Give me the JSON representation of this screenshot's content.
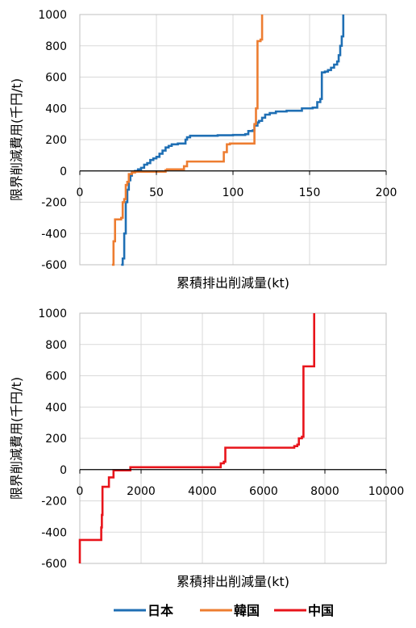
{
  "chart_data": [
    {
      "type": "line",
      "step": true,
      "xlabel": "累積排出削減量(kt)",
      "ylabel": "限界削減費用(千円/t)",
      "xlim": [
        0,
        200
      ],
      "ylim": [
        -600,
        1000
      ],
      "xticks": [
        0,
        50,
        100,
        150,
        200
      ],
      "yticks": [
        -600,
        -400,
        -200,
        0,
        200,
        400,
        600,
        800,
        1000
      ],
      "grid": true,
      "series": [
        {
          "name": "日本",
          "color": "#1f6fb4",
          "points": [
            [
              27,
              -600
            ],
            [
              28,
              -560
            ],
            [
              29,
              -400
            ],
            [
              30,
              -200
            ],
            [
              31,
              -120
            ],
            [
              32,
              -60
            ],
            [
              33,
              -30
            ],
            [
              34,
              -10
            ],
            [
              36,
              0
            ],
            [
              38,
              10
            ],
            [
              40,
              20
            ],
            [
              42,
              40
            ],
            [
              44,
              50
            ],
            [
              46,
              70
            ],
            [
              48,
              80
            ],
            [
              50,
              90
            ],
            [
              52,
              110
            ],
            [
              54,
              130
            ],
            [
              56,
              150
            ],
            [
              58,
              160
            ],
            [
              60,
              170
            ],
            [
              64,
              175
            ],
            [
              68,
              175
            ],
            [
              69,
              200
            ],
            [
              70,
              215
            ],
            [
              72,
              225
            ],
            [
              80,
              225
            ],
            [
              90,
              228
            ],
            [
              100,
              230
            ],
            [
              108,
              235
            ],
            [
              110,
              255
            ],
            [
              113,
              260
            ],
            [
              114,
              290
            ],
            [
              116,
              310
            ],
            [
              117,
              320
            ],
            [
              119,
              340
            ],
            [
              121,
              360
            ],
            [
              124,
              370
            ],
            [
              128,
              380
            ],
            [
              135,
              385
            ],
            [
              145,
              400
            ],
            [
              152,
              405
            ],
            [
              155,
              440
            ],
            [
              157,
              460
            ],
            [
              158,
              630
            ],
            [
              160,
              635
            ],
            [
              162,
              645
            ],
            [
              164,
              660
            ],
            [
              166,
              680
            ],
            [
              168,
              700
            ],
            [
              169,
              740
            ],
            [
              170,
              800
            ],
            [
              171,
              860
            ],
            [
              172,
              1000
            ]
          ]
        },
        {
          "name": "韓国",
          "color": "#ed7d31",
          "points": [
            [
              21,
              -600
            ],
            [
              22,
              -450
            ],
            [
              23,
              -310
            ],
            [
              27,
              -300
            ],
            [
              28,
              -200
            ],
            [
              29,
              -180
            ],
            [
              30,
              -90
            ],
            [
              31,
              -70
            ],
            [
              32,
              -20
            ],
            [
              34,
              -10
            ],
            [
              36,
              -5
            ],
            [
              55,
              -5
            ],
            [
              56,
              5
            ],
            [
              57,
              10
            ],
            [
              67,
              10
            ],
            [
              68,
              30
            ],
            [
              70,
              60
            ],
            [
              93,
              60
            ],
            [
              94,
              120
            ],
            [
              96,
              170
            ],
            [
              98,
              175
            ],
            [
              113,
              175
            ],
            [
              114,
              300
            ],
            [
              115,
              400
            ],
            [
              116,
              830
            ],
            [
              118,
              840
            ],
            [
              119,
              1000
            ]
          ]
        }
      ]
    },
    {
      "type": "line",
      "step": true,
      "xlabel": "累積排出削減量(kt)",
      "ylabel": "限界削減費用(千円/t)",
      "xlim": [
        0,
        10000
      ],
      "ylim": [
        -600,
        1000
      ],
      "xticks": [
        0,
        2000,
        4000,
        6000,
        8000,
        10000
      ],
      "yticks": [
        -600,
        -400,
        -200,
        0,
        200,
        400,
        600,
        800,
        1000
      ],
      "grid": true,
      "series": [
        {
          "name": "中国",
          "color": "#e8141b",
          "points": [
            [
              0,
              -600
            ],
            [
              0,
              -450
            ],
            [
              650,
              -450
            ],
            [
              700,
              -370
            ],
            [
              720,
              -290
            ],
            [
              740,
              -110
            ],
            [
              900,
              -110
            ],
            [
              950,
              -50
            ],
            [
              1050,
              -50
            ],
            [
              1100,
              -5
            ],
            [
              1600,
              -5
            ],
            [
              1650,
              15
            ],
            [
              4550,
              15
            ],
            [
              4600,
              40
            ],
            [
              4700,
              50
            ],
            [
              4750,
              140
            ],
            [
              6950,
              140
            ],
            [
              7000,
              150
            ],
            [
              7100,
              160
            ],
            [
              7150,
              200
            ],
            [
              7250,
              210
            ],
            [
              7300,
              660
            ],
            [
              7600,
              660
            ],
            [
              7650,
              1000
            ]
          ]
        }
      ]
    }
  ],
  "legend": [
    {
      "label": "日本",
      "color": "#1f6fb4"
    },
    {
      "label": "韓国",
      "color": "#ed7d31"
    },
    {
      "label": "中国",
      "color": "#e8141b"
    }
  ]
}
